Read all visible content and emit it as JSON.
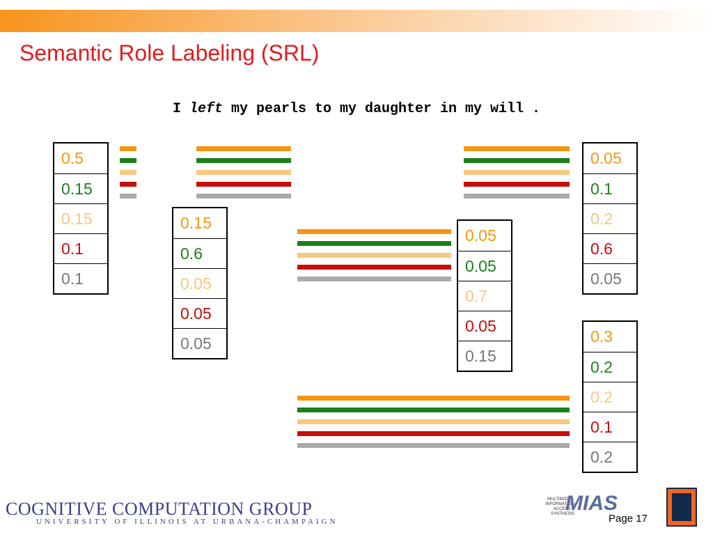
{
  "header": {
    "title": "Semantic Role Labeling (SRL)"
  },
  "sentence": {
    "before": "I ",
    "verb": "left",
    "after": " my pearls to my daughter in my will ."
  },
  "tables": [
    {
      "values": [
        "0.5",
        "0.15",
        "0.15",
        "0.1",
        "0.1"
      ]
    },
    {
      "values": [
        "0.15",
        "0.6",
        "0.05",
        "0.05",
        "0.05"
      ]
    },
    {
      "values": [
        "0.05",
        "0.05",
        "0.7",
        "0.05",
        "0.15"
      ]
    },
    {
      "values": [
        "0.05",
        "0.1",
        "0.2",
        "0.6",
        "0.05"
      ]
    },
    {
      "values": [
        "0.3",
        "0.2",
        "0.2",
        "0.1",
        "0.2"
      ]
    }
  ],
  "footer": {
    "group": "COGNITIVE COMPUTATION GROUP",
    "university": "UNIVERSITY OF ILLINOIS AT URBANA-CHAMPAIGN",
    "mias": "MIAS",
    "mias_sub": "MULTIMODAL INFORMATION ACCESS & SYNTHESIS",
    "page": "Page 17"
  }
}
